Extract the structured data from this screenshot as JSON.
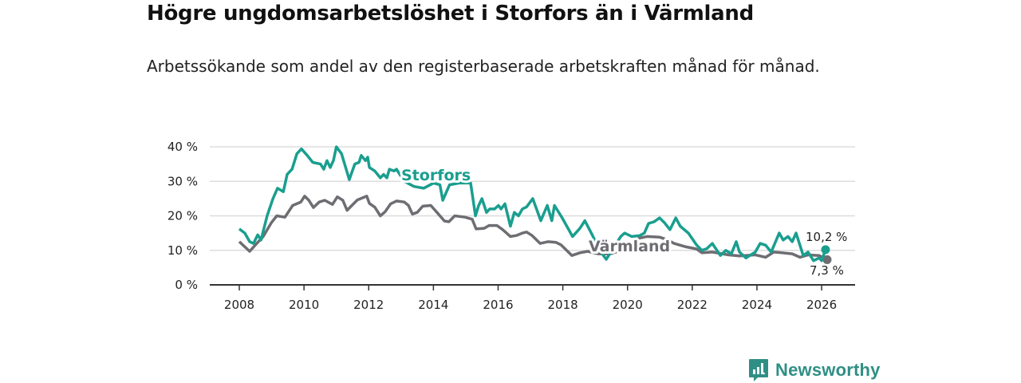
{
  "title": "Högre ungdomsarbetslöshet i Storfors än i Värmland",
  "subtitle": "Arbetssökande som andel av den registerbaserade arbetskraften månad för månad.",
  "brand": "Newsworthy",
  "colors": {
    "storfors": "#1a9e8f",
    "varmland": "#6d6d72",
    "grid": "#dddddd",
    "axis": "#333333"
  },
  "chart_data": {
    "type": "line",
    "title": "Högre ungdomsarbetslöshet i Storfors än i Värmland",
    "xlabel": "",
    "ylabel": "",
    "xlim": [
      2008,
      2026.2
    ],
    "ylim": [
      0,
      40
    ],
    "x_ticks": [
      2008,
      2010,
      2012,
      2014,
      2016,
      2018,
      2020,
      2022,
      2024,
      2026
    ],
    "x_tick_labels": [
      "2008",
      "2010",
      "2012",
      "2014",
      "2016",
      "2018",
      "2020",
      "2022",
      "2024",
      "2026"
    ],
    "y_ticks": [
      0,
      10,
      20,
      30,
      40
    ],
    "y_tick_labels": [
      "0 %",
      "10 %",
      "20 %",
      "30 %",
      "40 %"
    ],
    "grid": true,
    "series": [
      {
        "name": "Värmland",
        "label": "Värmland",
        "end_label": "7,3 %",
        "points": [
          [
            2008.0,
            12.5
          ],
          [
            2008.32,
            9.7
          ],
          [
            2008.54,
            12
          ],
          [
            2008.74,
            14
          ],
          [
            2008.99,
            18
          ],
          [
            2009.16,
            20
          ],
          [
            2009.41,
            19.6
          ],
          [
            2009.65,
            23
          ],
          [
            2009.9,
            24
          ],
          [
            2010.02,
            25.7
          ],
          [
            2010.15,
            24.5
          ],
          [
            2010.29,
            22.4
          ],
          [
            2010.47,
            24
          ],
          [
            2010.64,
            24.5
          ],
          [
            2010.88,
            23.3
          ],
          [
            2011.03,
            25.5
          ],
          [
            2011.2,
            24.5
          ],
          [
            2011.33,
            21.6
          ],
          [
            2011.48,
            23
          ],
          [
            2011.65,
            24.6
          ],
          [
            2011.94,
            25.7
          ],
          [
            2012.02,
            23.6
          ],
          [
            2012.19,
            22.5
          ],
          [
            2012.36,
            20
          ],
          [
            2012.51,
            21.2
          ],
          [
            2012.68,
            23.5
          ],
          [
            2012.86,
            24.3
          ],
          [
            2013.1,
            24
          ],
          [
            2013.23,
            23
          ],
          [
            2013.35,
            20.5
          ],
          [
            2013.5,
            21
          ],
          [
            2013.67,
            22.8
          ],
          [
            2013.92,
            23
          ],
          [
            2014.11,
            21
          ],
          [
            2014.34,
            18.5
          ],
          [
            2014.48,
            18.3
          ],
          [
            2014.66,
            20
          ],
          [
            2014.98,
            19.6
          ],
          [
            2015.2,
            19
          ],
          [
            2015.32,
            16.2
          ],
          [
            2015.57,
            16.4
          ],
          [
            2015.72,
            17.2
          ],
          [
            2015.96,
            17.2
          ],
          [
            2016.14,
            16
          ],
          [
            2016.38,
            14
          ],
          [
            2016.56,
            14.3
          ],
          [
            2016.75,
            15
          ],
          [
            2016.88,
            15.3
          ],
          [
            2017.05,
            14.3
          ],
          [
            2017.3,
            12
          ],
          [
            2017.54,
            12.5
          ],
          [
            2017.79,
            12.3
          ],
          [
            2017.94,
            11.6
          ],
          [
            2018.28,
            8.5
          ],
          [
            2018.53,
            9.3
          ],
          [
            2018.77,
            9.7
          ],
          [
            2019.09,
            9
          ],
          [
            2019.46,
            9
          ],
          [
            2019.83,
            10
          ],
          [
            2020.1,
            11.5
          ],
          [
            2020.35,
            13.5
          ],
          [
            2020.6,
            14
          ],
          [
            2021.0,
            13.8
          ],
          [
            2021.25,
            13
          ],
          [
            2021.44,
            12
          ],
          [
            2021.81,
            11
          ],
          [
            2022.13,
            10.4
          ],
          [
            2022.3,
            9.3
          ],
          [
            2022.62,
            9.5
          ],
          [
            2023.11,
            8.7
          ],
          [
            2023.46,
            8.4
          ],
          [
            2023.95,
            8.7
          ],
          [
            2024.27,
            8
          ],
          [
            2024.52,
            9.5
          ],
          [
            2024.77,
            9.3
          ],
          [
            2025.09,
            9
          ],
          [
            2025.33,
            8
          ],
          [
            2025.58,
            8.7
          ],
          [
            2025.92,
            8.5
          ],
          [
            2026.17,
            7.3
          ]
        ]
      },
      {
        "name": "Storfors",
        "label": "Storfors",
        "end_label": "10,2 %",
        "points": [
          [
            2008.0,
            16.2
          ],
          [
            2008.17,
            15
          ],
          [
            2008.32,
            12.5
          ],
          [
            2008.44,
            12
          ],
          [
            2008.57,
            14.5
          ],
          [
            2008.67,
            13
          ],
          [
            2008.86,
            20
          ],
          [
            2009.04,
            25
          ],
          [
            2009.18,
            28
          ],
          [
            2009.36,
            27
          ],
          [
            2009.48,
            32
          ],
          [
            2009.63,
            33.5
          ],
          [
            2009.78,
            38
          ],
          [
            2009.92,
            39.4
          ],
          [
            2010.1,
            37.5
          ],
          [
            2010.27,
            35.5
          ],
          [
            2010.51,
            35
          ],
          [
            2010.61,
            33.5
          ],
          [
            2010.71,
            36
          ],
          [
            2010.81,
            34
          ],
          [
            2010.91,
            36
          ],
          [
            2011.0,
            40
          ],
          [
            2011.16,
            38
          ],
          [
            2011.4,
            30.5
          ],
          [
            2011.57,
            35
          ],
          [
            2011.7,
            35.5
          ],
          [
            2011.77,
            37.5
          ],
          [
            2011.9,
            36
          ],
          [
            2011.97,
            37
          ],
          [
            2012.02,
            34
          ],
          [
            2012.19,
            33
          ],
          [
            2012.36,
            31
          ],
          [
            2012.46,
            32
          ],
          [
            2012.56,
            31
          ],
          [
            2012.64,
            33.5
          ],
          [
            2012.78,
            33
          ],
          [
            2012.86,
            33.5
          ],
          [
            2012.96,
            32
          ],
          [
            2013.1,
            30
          ],
          [
            2013.4,
            28.5
          ],
          [
            2013.7,
            28
          ],
          [
            2014.0,
            29.5
          ],
          [
            2014.2,
            29
          ],
          [
            2014.29,
            24.5
          ],
          [
            2014.5,
            29
          ],
          [
            2014.8,
            29.5
          ],
          [
            2015.15,
            29.5
          ],
          [
            2015.3,
            20
          ],
          [
            2015.4,
            23
          ],
          [
            2015.5,
            25
          ],
          [
            2015.64,
            21
          ],
          [
            2015.74,
            22
          ],
          [
            2015.89,
            22
          ],
          [
            2016.01,
            23
          ],
          [
            2016.09,
            22
          ],
          [
            2016.21,
            23.5
          ],
          [
            2016.38,
            17
          ],
          [
            2016.5,
            21
          ],
          [
            2016.63,
            20
          ],
          [
            2016.75,
            22
          ],
          [
            2016.88,
            22.6
          ],
          [
            2017.07,
            25
          ],
          [
            2017.32,
            18.6
          ],
          [
            2017.52,
            23
          ],
          [
            2017.66,
            18.6
          ],
          [
            2017.74,
            23
          ],
          [
            2017.98,
            19.4
          ],
          [
            2018.3,
            14
          ],
          [
            2018.53,
            16.4
          ],
          [
            2018.68,
            18.6
          ],
          [
            2018.92,
            14.3
          ],
          [
            2019.14,
            10
          ],
          [
            2019.34,
            7.4
          ],
          [
            2019.59,
            11
          ],
          [
            2019.79,
            14
          ],
          [
            2019.91,
            15
          ],
          [
            2020.13,
            14
          ],
          [
            2020.38,
            14.3
          ],
          [
            2020.52,
            15
          ],
          [
            2020.65,
            17.8
          ],
          [
            2020.82,
            18.3
          ],
          [
            2020.99,
            19.4
          ],
          [
            2021.14,
            18
          ],
          [
            2021.31,
            16
          ],
          [
            2021.49,
            19.4
          ],
          [
            2021.63,
            17
          ],
          [
            2021.88,
            15
          ],
          [
            2022.13,
            11.6
          ],
          [
            2022.3,
            10
          ],
          [
            2022.45,
            10.5
          ],
          [
            2022.62,
            12
          ],
          [
            2022.87,
            8.5
          ],
          [
            2023.04,
            10
          ],
          [
            2023.21,
            9
          ],
          [
            2023.36,
            12.5
          ],
          [
            2023.46,
            9.5
          ],
          [
            2023.66,
            7.8
          ],
          [
            2023.95,
            9.5
          ],
          [
            2024.1,
            12
          ],
          [
            2024.27,
            11.5
          ],
          [
            2024.44,
            9.5
          ],
          [
            2024.69,
            15
          ],
          [
            2024.81,
            13
          ],
          [
            2024.96,
            14
          ],
          [
            2025.09,
            12.5
          ],
          [
            2025.21,
            15
          ],
          [
            2025.43,
            8.5
          ],
          [
            2025.58,
            9.5
          ],
          [
            2025.75,
            7
          ],
          [
            2025.92,
            7.8
          ],
          [
            2026.0,
            7
          ],
          [
            2026.12,
            10.2
          ]
        ]
      }
    ]
  }
}
